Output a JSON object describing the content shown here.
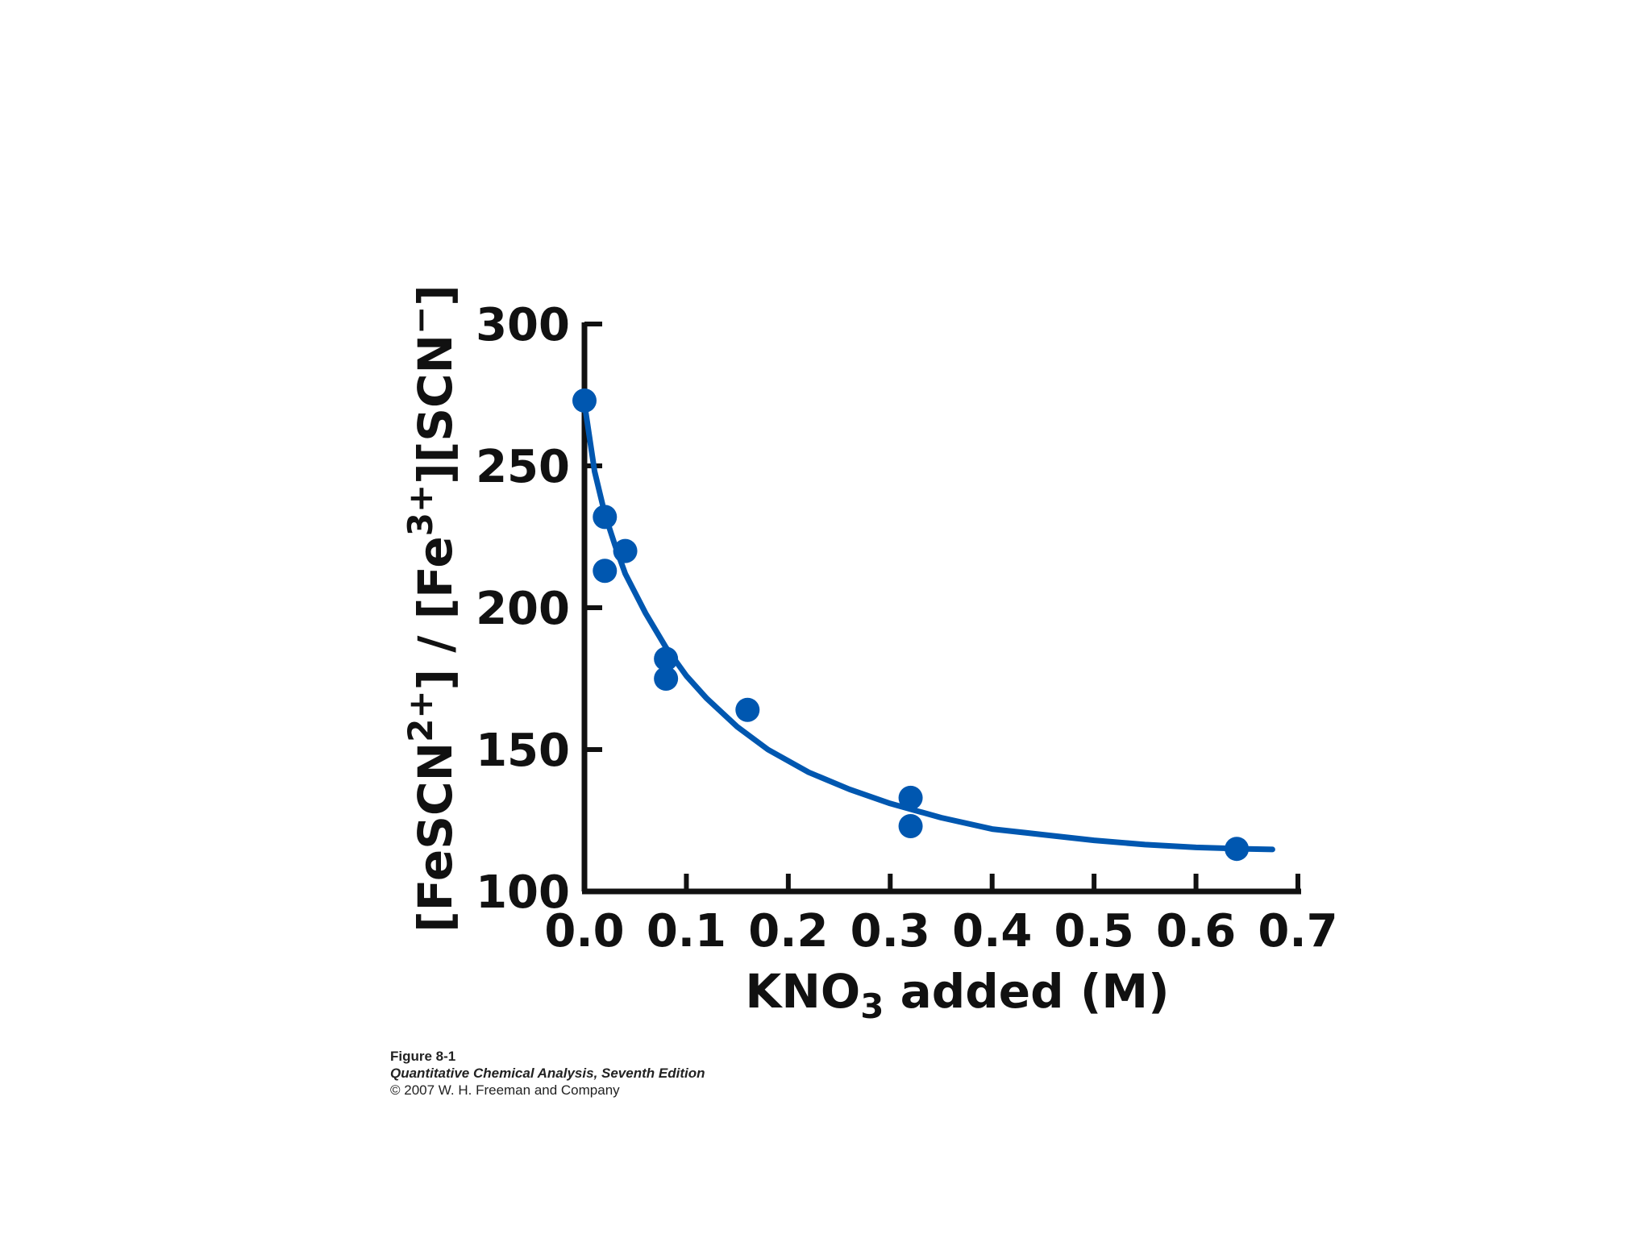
{
  "chart_data": {
    "type": "scatter",
    "title": "",
    "xlabel": {
      "prefix": "KNO",
      "subscript": "3",
      "suffix": " added (M)"
    },
    "ylabel": {
      "parts": [
        {
          "text": "[FeSCN"
        },
        {
          "text": "2+",
          "sup": true
        },
        {
          "text": "] / [Fe"
        },
        {
          "text": "3+",
          "sup": true
        },
        {
          "text": "][SCN"
        },
        {
          "text": "−",
          "sup": true
        },
        {
          "text": "]"
        }
      ]
    },
    "xlim": [
      0,
      0.7
    ],
    "ylim": [
      100,
      300
    ],
    "x_ticks": [
      "0.0",
      "0.1",
      "0.2",
      "0.3",
      "0.4",
      "0.5",
      "0.6",
      "0.7"
    ],
    "y_ticks": [
      "100",
      "150",
      "200",
      "250",
      "300"
    ],
    "grid": false,
    "series": [
      {
        "style": "points",
        "color": "#0057b0",
        "points": [
          {
            "x": 0.0,
            "y": 273
          },
          {
            "x": 0.02,
            "y": 232
          },
          {
            "x": 0.02,
            "y": 213
          },
          {
            "x": 0.04,
            "y": 220
          },
          {
            "x": 0.08,
            "y": 182
          },
          {
            "x": 0.08,
            "y": 175
          },
          {
            "x": 0.16,
            "y": 164
          },
          {
            "x": 0.32,
            "y": 133
          },
          {
            "x": 0.32,
            "y": 123
          },
          {
            "x": 0.64,
            "y": 115
          }
        ]
      },
      {
        "style": "line",
        "color": "#0057b0",
        "points": [
          {
            "x": 0.0,
            "y": 272
          },
          {
            "x": 0.01,
            "y": 248
          },
          {
            "x": 0.02,
            "y": 233
          },
          {
            "x": 0.03,
            "y": 222
          },
          {
            "x": 0.04,
            "y": 212
          },
          {
            "x": 0.06,
            "y": 198
          },
          {
            "x": 0.08,
            "y": 186
          },
          {
            "x": 0.1,
            "y": 176
          },
          {
            "x": 0.12,
            "y": 168
          },
          {
            "x": 0.15,
            "y": 158
          },
          {
            "x": 0.18,
            "y": 150
          },
          {
            "x": 0.22,
            "y": 142
          },
          {
            "x": 0.26,
            "y": 136
          },
          {
            "x": 0.3,
            "y": 131
          },
          {
            "x": 0.35,
            "y": 126
          },
          {
            "x": 0.4,
            "y": 122
          },
          {
            "x": 0.45,
            "y": 120
          },
          {
            "x": 0.5,
            "y": 118
          },
          {
            "x": 0.55,
            "y": 116.5
          },
          {
            "x": 0.6,
            "y": 115.5
          },
          {
            "x": 0.65,
            "y": 115
          },
          {
            "x": 0.675,
            "y": 114.8
          }
        ]
      }
    ]
  },
  "caption": {
    "figure": "Figure 8-1",
    "book": "Quantitative Chemical Analysis, Seventh Edition",
    "copyright": "© 2007 W. H. Freeman and Company"
  }
}
